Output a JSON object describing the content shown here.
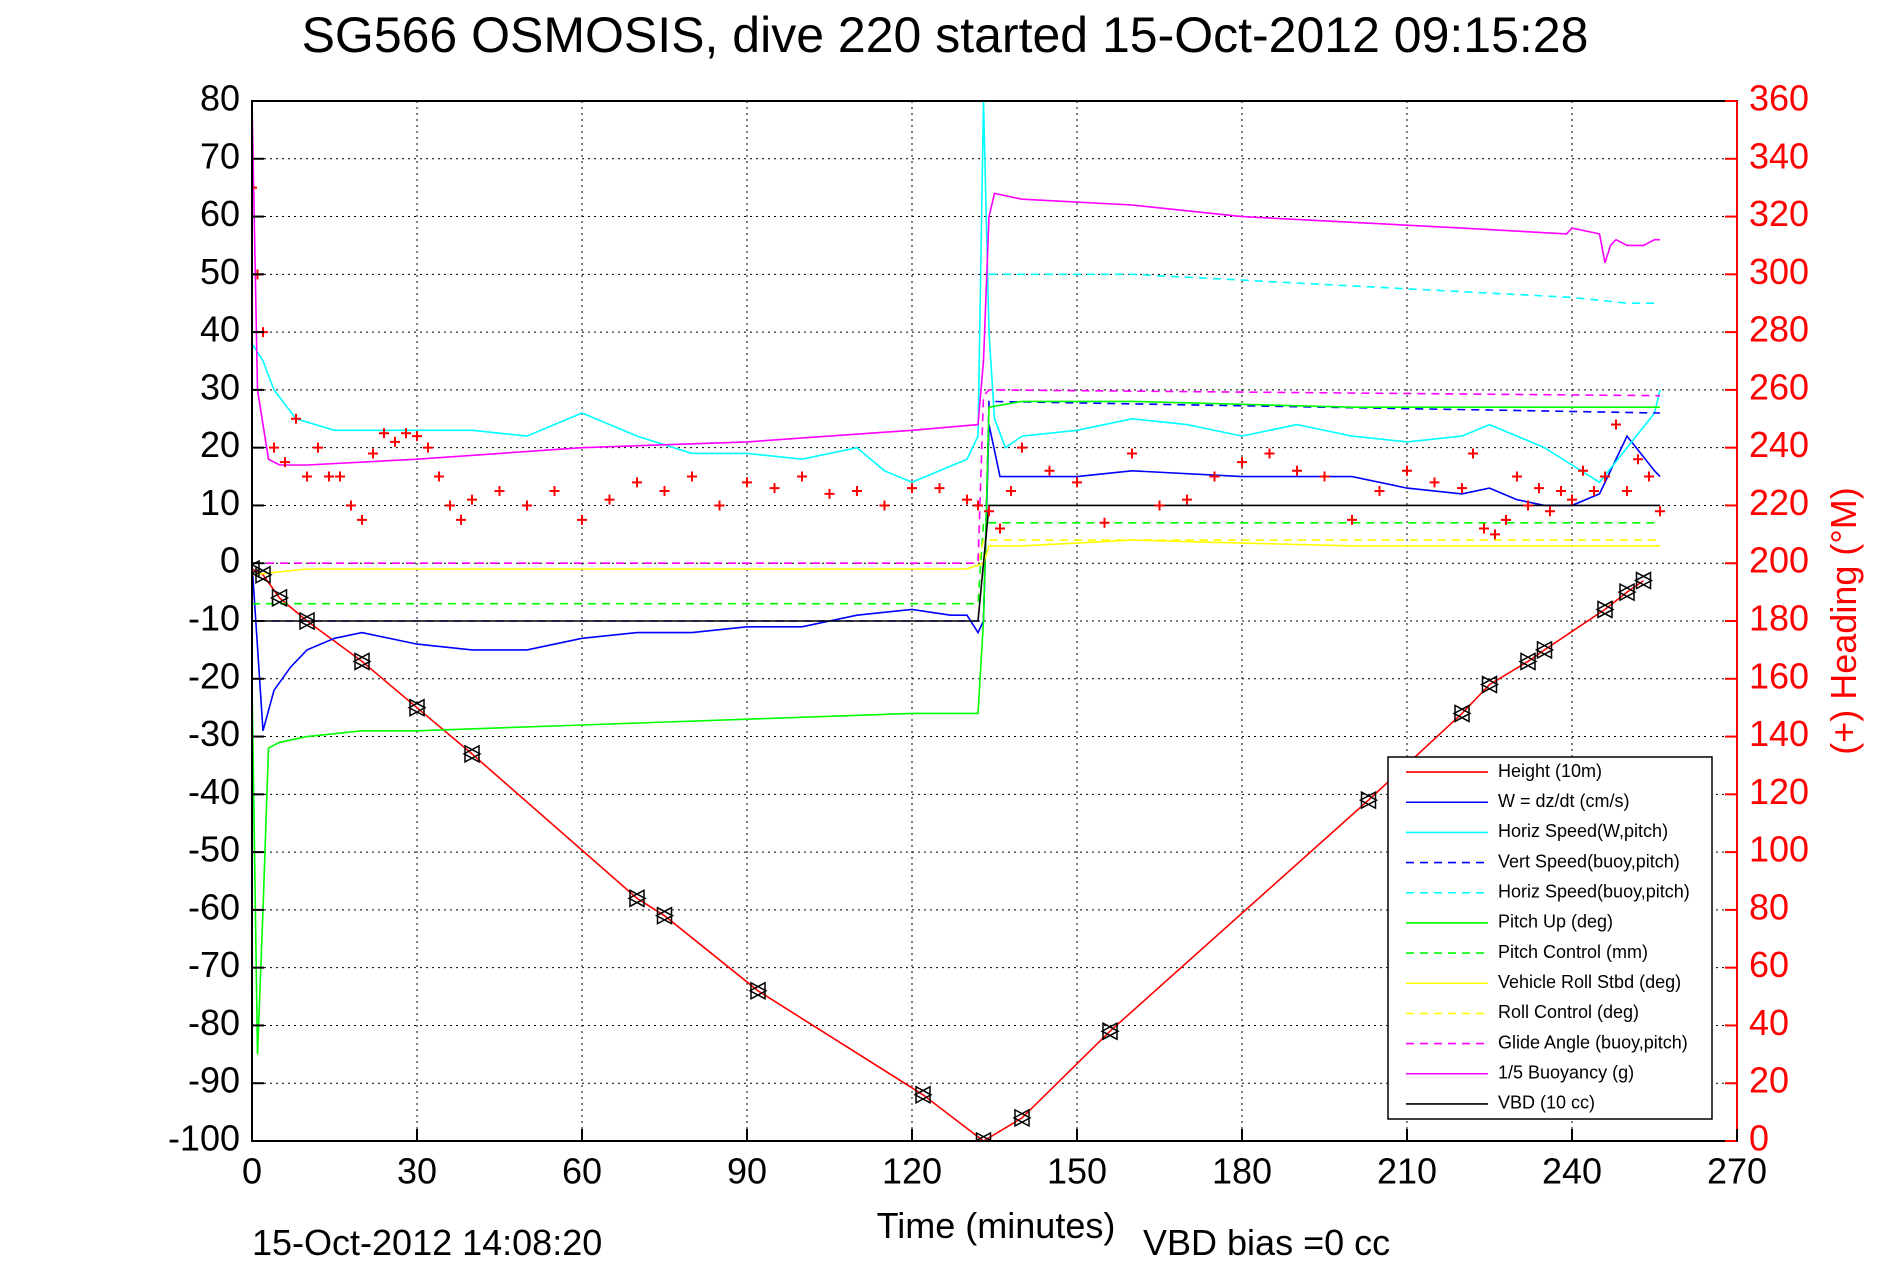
{
  "chart_data": {
    "type": "line",
    "title": "SG566 OSMOSIS, dive 220 started 15-Oct-2012 09:15:28",
    "xlabel": "Time (minutes)",
    "ylabel": "",
    "y2label": "(+) Heading (°M)",
    "footer_left": "15-Oct-2012 14:08:20",
    "footer_right": "VBD bias =0 cc",
    "xlim": [
      0,
      270
    ],
    "ylim": [
      -100,
      80
    ],
    "y2lim": [
      0,
      360
    ],
    "grid": true,
    "legend_position": "bottom-right",
    "x_ticks": [
      "0",
      "30",
      "60",
      "90",
      "120",
      "150",
      "180",
      "210",
      "240",
      "270"
    ],
    "y_ticks": [
      "80",
      "70",
      "60",
      "50",
      "40",
      "30",
      "20",
      "10",
      "0",
      "-10",
      "-20",
      "-30",
      "-40",
      "-50",
      "-60",
      "-70",
      "-80",
      "-90",
      "-100"
    ],
    "y2_ticks": [
      "360",
      "340",
      "320",
      "300",
      "280",
      "260",
      "240",
      "220",
      "200",
      "180",
      "160",
      "140",
      "120",
      "100",
      "80",
      "60",
      "40",
      "20",
      "0"
    ],
    "series": [
      {
        "name": "Height (10m)",
        "color": "#ff0000",
        "dash": "solid",
        "x": [
          0,
          2,
          5,
          10,
          20,
          30,
          40,
          70,
          75,
          92,
          122,
          133,
          140,
          156,
          203,
          220,
          225,
          232,
          235,
          246,
          250,
          253
        ],
        "y": [
          -1,
          -2,
          -6,
          -10,
          -17,
          -25,
          -33,
          -58,
          -61,
          -74,
          -92,
          -100,
          -96,
          -81,
          -41,
          -26,
          -21,
          -17,
          -15,
          -8,
          -5,
          -3
        ]
      },
      {
        "name": "W = dz/dt (cm/s)",
        "color": "#0000ff",
        "dash": "solid",
        "x": [
          0,
          2,
          4,
          7,
          10,
          15,
          20,
          30,
          40,
          50,
          60,
          70,
          80,
          90,
          100,
          110,
          120,
          127,
          130,
          132,
          133,
          134,
          136,
          140,
          150,
          160,
          180,
          200,
          210,
          220,
          225,
          230,
          235,
          240,
          245,
          250,
          255,
          256
        ],
        "y": [
          0,
          -29,
          -22,
          -18,
          -15,
          -13,
          -12,
          -14,
          -15,
          -15,
          -13,
          -12,
          -12,
          -11,
          -11,
          -9,
          -8,
          -9,
          -9,
          -12,
          -10,
          24,
          15,
          15,
          15,
          16,
          15,
          15,
          13,
          12,
          13,
          11,
          10,
          10,
          12,
          22,
          16,
          15
        ]
      },
      {
        "name": "Horiz Speed(W,pitch)",
        "color": "#00ffff",
        "dash": "solid",
        "x": [
          0,
          2,
          4,
          8,
          15,
          25,
          40,
          50,
          60,
          70,
          80,
          90,
          100,
          110,
          115,
          120,
          125,
          130,
          132,
          133,
          134,
          135,
          137,
          140,
          150,
          160,
          170,
          180,
          190,
          200,
          210,
          220,
          225,
          230,
          235,
          240,
          245,
          250,
          255,
          256
        ],
        "y": [
          38,
          35,
          30,
          25,
          23,
          23,
          23,
          22,
          26,
          22,
          19,
          19,
          18,
          20,
          16,
          14,
          16,
          18,
          22,
          80,
          40,
          25,
          20,
          22,
          23,
          25,
          24,
          22,
          24,
          22,
          21,
          22,
          24,
          22,
          20,
          17,
          14,
          20,
          26,
          30
        ]
      },
      {
        "name": "Vert Speed(buoy,pitch)",
        "color": "#0000ff",
        "dash": "dashed",
        "x": [
          1,
          133,
          134,
          256
        ],
        "y": [
          -10,
          -10,
          28,
          26
        ]
      },
      {
        "name": "Horiz Speed(buoy,pitch)",
        "color": "#00ffff",
        "dash": "dashed",
        "x": [
          134,
          140,
          160,
          180,
          200,
          220,
          240,
          250,
          256
        ],
        "y": [
          50,
          50,
          50,
          49,
          48,
          47,
          46,
          45,
          45
        ]
      },
      {
        "name": "Pitch Up (deg)",
        "color": "#00ff00",
        "dash": "solid",
        "x": [
          0,
          1,
          2,
          3,
          5,
          10,
          20,
          30,
          60,
          90,
          120,
          130,
          132,
          133,
          134,
          140,
          160,
          200,
          240,
          256
        ],
        "y": [
          -20,
          -85,
          -60,
          -32,
          -31,
          -30,
          -29,
          -29,
          -28,
          -27,
          -26,
          -26,
          -26,
          -10,
          27,
          28,
          28,
          27,
          27,
          27
        ]
      },
      {
        "name": "Pitch Control (mm)",
        "color": "#00ff00",
        "dash": "dashed",
        "x": [
          0,
          132,
          133,
          256
        ],
        "y": [
          -7,
          -7,
          7,
          7
        ]
      },
      {
        "name": "Vehicle Roll Stbd (deg)",
        "color": "#ffff00",
        "dash": "solid",
        "x": [
          0,
          10,
          20,
          40,
          60,
          80,
          100,
          120,
          130,
          133,
          134,
          140,
          160,
          200,
          240,
          256
        ],
        "y": [
          -2,
          -1,
          -1,
          -1,
          -1,
          -1,
          -1,
          -1,
          -1,
          0,
          3,
          3,
          4,
          3,
          3,
          3
        ]
      },
      {
        "name": "Roll Control (deg)",
        "color": "#ffff00",
        "dash": "dashed",
        "x": [
          0,
          132,
          133,
          256
        ],
        "y": [
          0,
          0,
          4,
          4
        ]
      },
      {
        "name": "Glide Angle (buoy,pitch)",
        "color": "#ff00ff",
        "dash": "dashed",
        "x": [
          0,
          132,
          133,
          134,
          256
        ],
        "y": [
          0,
          0,
          29,
          30,
          29
        ]
      },
      {
        "name": "1/5 Buoyancy (g)",
        "color": "#ff00ff",
        "dash": "solid",
        "x": [
          0,
          1,
          3,
          5,
          10,
          30,
          60,
          90,
          120,
          132,
          133,
          134,
          135,
          140,
          160,
          180,
          200,
          220,
          239,
          240,
          245,
          246,
          247,
          248,
          250,
          253,
          255,
          256
        ],
        "y": [
          80,
          30,
          18,
          17,
          17,
          18,
          20,
          21,
          23,
          24,
          35,
          60,
          64,
          63,
          62,
          60,
          59,
          58,
          57,
          58,
          57,
          52,
          55,
          56,
          55,
          55,
          56,
          56
        ]
      },
      {
        "name": "VBD (10 cc)",
        "color": "#000000",
        "dash": "solid",
        "x": [
          0,
          132,
          133,
          134,
          256
        ],
        "y": [
          -10,
          -10,
          0,
          10,
          10
        ]
      },
      {
        "name": "Heading",
        "color": "#ff0000",
        "marker": "+",
        "axis": "right",
        "x": [
          0,
          1,
          2,
          4,
          6,
          8,
          10,
          12,
          14,
          16,
          18,
          20,
          22,
          24,
          26,
          28,
          30,
          32,
          34,
          36,
          38,
          40,
          45,
          50,
          55,
          60,
          65,
          70,
          75,
          80,
          85,
          90,
          95,
          100,
          105,
          110,
          115,
          120,
          125,
          130,
          132,
          134,
          136,
          138,
          140,
          145,
          150,
          155,
          160,
          165,
          170,
          175,
          180,
          185,
          190,
          195,
          200,
          205,
          210,
          215,
          220,
          222,
          224,
          226,
          228,
          230,
          232,
          234,
          236,
          238,
          240,
          242,
          244,
          246,
          248,
          250,
          252,
          254,
          256
        ],
        "y": [
          330,
          300,
          280,
          240,
          235,
          250,
          230,
          240,
          230,
          230,
          220,
          215,
          238,
          245,
          242,
          245,
          244,
          240,
          230,
          220,
          215,
          222,
          225,
          220,
          225,
          215,
          222,
          228,
          225,
          230,
          220,
          228,
          226,
          230,
          224,
          225,
          220,
          226,
          226,
          222,
          220,
          218,
          212,
          225,
          240,
          232,
          228,
          214,
          238,
          220,
          222,
          230,
          235,
          238,
          232,
          230,
          215,
          225,
          232,
          228,
          226,
          238,
          212,
          210,
          215,
          230,
          220,
          226,
          218,
          225,
          222,
          232,
          225,
          230,
          248,
          225,
          236,
          230,
          218
        ]
      }
    ]
  }
}
